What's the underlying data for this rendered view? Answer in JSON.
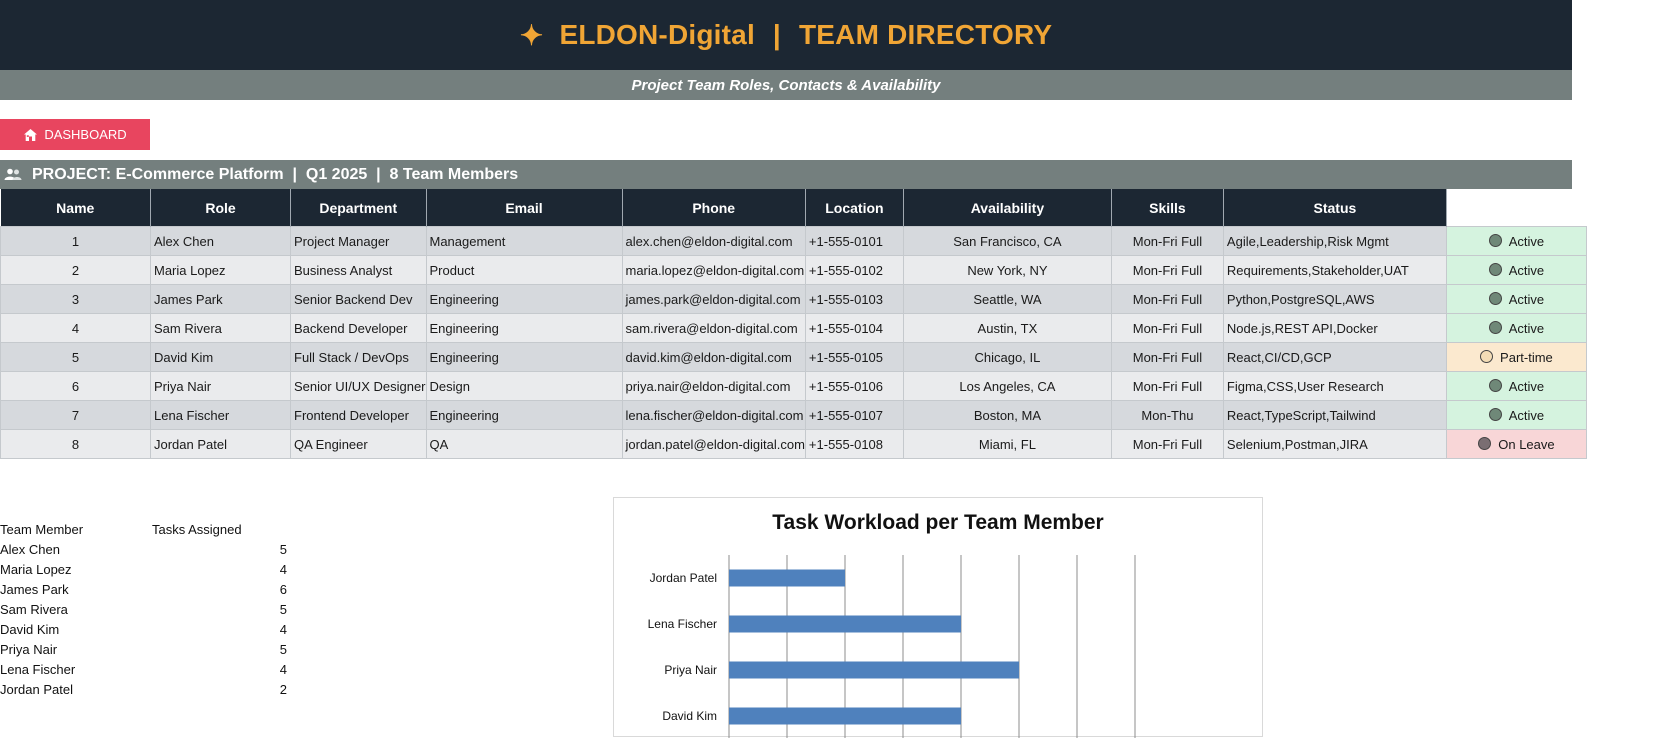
{
  "header": {
    "star": "✦",
    "company": "ELDON-Digital",
    "separator": "|",
    "title": "TEAM DIRECTORY",
    "subtitle": "Project Team Roles, Contacts & Availability"
  },
  "dashboard_button": {
    "label": "DASHBOARD",
    "icon": "house-icon",
    "color": "#e8455f"
  },
  "project_bar": {
    "icon": "people-icon",
    "text": "PROJECT: E-Commerce Platform  |  Q1 2025  |  8 Team Members"
  },
  "table": {
    "columns": [
      "Name",
      "Role",
      "Department",
      "Email",
      "Phone",
      "Location",
      "Availability",
      "Skills",
      "Status"
    ],
    "rows": [
      {
        "num": "1",
        "name": "Alex Chen",
        "role": "Project Manager",
        "dept": "Management",
        "email": "alex.chen@eldon-digital.com",
        "phone": "+1-555-0101",
        "loc": "San Francisco, CA",
        "avail": "Mon-Fri Full",
        "skills": "Agile,Leadership,Risk Mgmt",
        "status": "Active"
      },
      {
        "num": "2",
        "name": "Maria Lopez",
        "role": "Business Analyst",
        "dept": "Product",
        "email": "maria.lopez@eldon-digital.com",
        "phone": "+1-555-0102",
        "loc": "New York, NY",
        "avail": "Mon-Fri Full",
        "skills": "Requirements,Stakeholder,UAT",
        "status": "Active"
      },
      {
        "num": "3",
        "name": "James Park",
        "role": "Senior Backend Dev",
        "dept": "Engineering",
        "email": "james.park@eldon-digital.com",
        "phone": "+1-555-0103",
        "loc": "Seattle, WA",
        "avail": "Mon-Fri Full",
        "skills": "Python,PostgreSQL,AWS",
        "status": "Active"
      },
      {
        "num": "4",
        "name": "Sam Rivera",
        "role": "Backend Developer",
        "dept": "Engineering",
        "email": "sam.rivera@eldon-digital.com",
        "phone": "+1-555-0104",
        "loc": "Austin, TX",
        "avail": "Mon-Fri Full",
        "skills": "Node.js,REST API,Docker",
        "status": "Active"
      },
      {
        "num": "5",
        "name": "David Kim",
        "role": "Full Stack / DevOps",
        "dept": "Engineering",
        "email": "david.kim@eldon-digital.com",
        "phone": "+1-555-0105",
        "loc": "Chicago, IL",
        "avail": "Mon-Fri Full",
        "skills": "React,CI/CD,GCP",
        "status": "Part-time"
      },
      {
        "num": "6",
        "name": "Priya Nair",
        "role": "Senior UI/UX Designer",
        "dept": "Design",
        "email": "priya.nair@eldon-digital.com",
        "phone": "+1-555-0106",
        "loc": "Los Angeles, CA",
        "avail": "Mon-Fri Full",
        "skills": "Figma,CSS,User Research",
        "status": "Active"
      },
      {
        "num": "7",
        "name": "Lena Fischer",
        "role": "Frontend Developer",
        "dept": "Engineering",
        "email": "lena.fischer@eldon-digital.com",
        "phone": "+1-555-0107",
        "loc": "Boston, MA",
        "avail": "Mon-Thu",
        "skills": "React,TypeScript,Tailwind",
        "status": "Active"
      },
      {
        "num": "8",
        "name": "Jordan Patel",
        "role": "QA Engineer",
        "dept": "QA",
        "email": "jordan.patel@eldon-digital.com",
        "phone": "+1-555-0108",
        "loc": "Miami, FL",
        "avail": "Mon-Fri Full",
        "skills": "Selenium,Postman,JIRA",
        "status": "On Leave"
      }
    ]
  },
  "workload_table": {
    "col1": "Team Member",
    "col2": "Tasks Assigned",
    "rows": [
      {
        "name": "Alex Chen",
        "tasks": "5"
      },
      {
        "name": "Maria Lopez",
        "tasks": "4"
      },
      {
        "name": "James Park",
        "tasks": "6"
      },
      {
        "name": "Sam Rivera",
        "tasks": "5"
      },
      {
        "name": "David Kim",
        "tasks": "4"
      },
      {
        "name": "Priya Nair",
        "tasks": "5"
      },
      {
        "name": "Lena Fischer",
        "tasks": "4"
      },
      {
        "name": "Jordan Patel",
        "tasks": "2"
      }
    ]
  },
  "chart_data": {
    "type": "bar",
    "orientation": "horizontal",
    "title": "Task Workload per Team Member",
    "categories": [
      "Jordan Patel",
      "Lena Fischer",
      "Priya Nair",
      "David Kim"
    ],
    "values": [
      2,
      4,
      5,
      4
    ],
    "xlim": [
      0,
      7
    ],
    "grid": true,
    "bar_color": "#4f81bd"
  },
  "colors": {
    "header_bg": "#1c2733",
    "accent": "#f0a535",
    "subbar_bg": "#747f7e",
    "active_bg": "#d5f3df",
    "parttime_bg": "#fbe9cf",
    "leave_bg": "#f8d6d7"
  }
}
